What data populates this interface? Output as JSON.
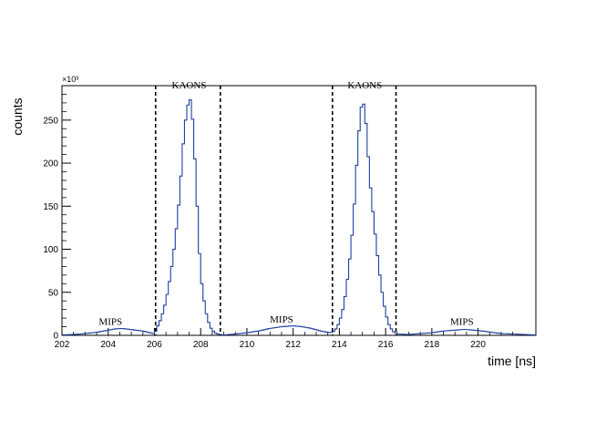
{
  "chart_data": {
    "type": "step-histogram",
    "xlabel": "time [ns]",
    "ylabel": "counts",
    "y_multiplier": "×10³",
    "xlim": [
      202,
      222.5
    ],
    "ylim": [
      0,
      290
    ],
    "x_ticks": [
      202,
      204,
      206,
      208,
      210,
      212,
      214,
      216,
      218,
      220
    ],
    "y_ticks": [
      0,
      50,
      100,
      150,
      200,
      250
    ],
    "bin_width": 0.1,
    "series": [
      {
        "color": "#1f3f9f",
        "points": [
          [
            202.0,
            0.5
          ],
          [
            202.5,
            1
          ],
          [
            203.0,
            2
          ],
          [
            203.5,
            3.5
          ],
          [
            204.0,
            6
          ],
          [
            204.3,
            7.5
          ],
          [
            204.6,
            8
          ],
          [
            204.9,
            7
          ],
          [
            205.2,
            6
          ],
          [
            205.5,
            5
          ],
          [
            205.8,
            3
          ],
          [
            206.0,
            2
          ],
          [
            206.1,
            8
          ],
          [
            206.3,
            20
          ],
          [
            206.5,
            40
          ],
          [
            206.7,
            70
          ],
          [
            206.9,
            110
          ],
          [
            207.1,
            165
          ],
          [
            207.2,
            205
          ],
          [
            207.3,
            240
          ],
          [
            207.4,
            260
          ],
          [
            207.5,
            275
          ],
          [
            207.6,
            272
          ],
          [
            207.7,
            230
          ],
          [
            207.8,
            180
          ],
          [
            207.9,
            120
          ],
          [
            208.0,
            70
          ],
          [
            208.2,
            30
          ],
          [
            208.4,
            10
          ],
          [
            208.6,
            3
          ],
          [
            208.8,
            1
          ],
          [
            209.0,
            0.5
          ],
          [
            209.5,
            1.5
          ],
          [
            210.0,
            3
          ],
          [
            210.5,
            5
          ],
          [
            211.0,
            8
          ],
          [
            211.5,
            10
          ],
          [
            212.0,
            11
          ],
          [
            212.4,
            10
          ],
          [
            212.8,
            8
          ],
          [
            213.2,
            5
          ],
          [
            213.6,
            3
          ],
          [
            213.8,
            5
          ],
          [
            214.0,
            15
          ],
          [
            214.2,
            35
          ],
          [
            214.4,
            75
          ],
          [
            214.6,
            130
          ],
          [
            214.8,
            220
          ],
          [
            214.9,
            255
          ],
          [
            215.0,
            275
          ],
          [
            215.1,
            262
          ],
          [
            215.2,
            230
          ],
          [
            215.3,
            185
          ],
          [
            215.5,
            130
          ],
          [
            215.7,
            80
          ],
          [
            215.9,
            40
          ],
          [
            216.1,
            15
          ],
          [
            216.3,
            5
          ],
          [
            216.5,
            1.5
          ],
          [
            217.0,
            1
          ],
          [
            217.5,
            2
          ],
          [
            218.0,
            3
          ],
          [
            218.5,
            5
          ],
          [
            219.0,
            6
          ],
          [
            219.4,
            7
          ],
          [
            219.8,
            6
          ],
          [
            220.2,
            5
          ],
          [
            220.6,
            3.5
          ],
          [
            221.0,
            2
          ],
          [
            221.5,
            1.5
          ],
          [
            222.0,
            1
          ],
          [
            222.5,
            0.5
          ]
        ]
      }
    ],
    "region_boundaries": [
      206.05,
      208.85,
      213.7,
      216.45
    ],
    "region_labels": [
      {
        "text": "MIPS",
        "x": 204.1,
        "y": 12
      },
      {
        "text": "KAONS",
        "x": 207.5,
        "y": 287
      },
      {
        "text": "MIPS",
        "x": 211.5,
        "y": 15
      },
      {
        "text": "KAONS",
        "x": 215.1,
        "y": 287
      },
      {
        "text": "MIPS",
        "x": 219.3,
        "y": 12
      }
    ]
  }
}
